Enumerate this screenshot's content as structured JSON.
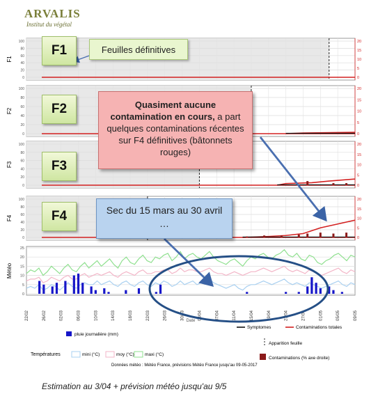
{
  "logo": {
    "name": "ARVALIS",
    "subtitle": "Institut du végétal"
  },
  "panels": [
    {
      "id": "F1",
      "ylabel": "F1",
      "right_ticks": [
        "20",
        "15",
        "10",
        "5",
        "0"
      ],
      "left_ticks": [
        "100",
        "80",
        "60",
        "40",
        "20",
        "0"
      ]
    },
    {
      "id": "F2",
      "ylabel": "F2",
      "right_ticks": [
        "20",
        "15",
        "10",
        "5",
        "0"
      ],
      "left_ticks": [
        "100",
        "80",
        "60",
        "40",
        "20",
        "0"
      ]
    },
    {
      "id": "F3",
      "ylabel": "F3",
      "right_ticks": [
        "20",
        "15",
        "10",
        "5",
        "0"
      ],
      "left_ticks": [
        "100",
        "80",
        "60",
        "40",
        "20",
        "0"
      ]
    },
    {
      "id": "F4",
      "ylabel": "F4",
      "right_ticks": [
        "20",
        "15",
        "10",
        "5",
        "0"
      ],
      "left_ticks": [
        "100",
        "80",
        "60",
        "40",
        "20",
        "0"
      ]
    }
  ],
  "meteo": {
    "ylabel": "Météo",
    "ticks": [
      "25",
      "20",
      "15",
      "10",
      "5",
      "0"
    ]
  },
  "chart_data": {
    "type": "line",
    "x": [
      "22/02",
      "26/02",
      "02/03",
      "06/03",
      "10/03",
      "14/03",
      "18/03",
      "22/03",
      "26/03",
      "30/03",
      "03/04",
      "07/04",
      "11/04",
      "15/04",
      "19/04",
      "23/04",
      "27/04",
      "01/05",
      "05/05",
      "09/05"
    ],
    "xlabel": "Date",
    "leaf_panels": [
      {
        "leaf": "F1",
        "emergence_x": "03/05",
        "contaminations_total": [],
        "bars": []
      },
      {
        "leaf": "F2",
        "emergence_x": "15/04",
        "contaminations_total": [
          {
            "x": "23/04",
            "y": 0
          },
          {
            "x": "27/04",
            "y": 0.3
          },
          {
            "x": "09/05",
            "y": 0.6
          }
        ],
        "bars": []
      },
      {
        "leaf": "F3",
        "emergence_x": "03/04",
        "contaminations_total": [
          {
            "x": "21/04",
            "y": 0
          },
          {
            "x": "23/04",
            "y": 0.8
          },
          {
            "x": "29/04",
            "y": 1.2
          },
          {
            "x": "03/05",
            "y": 2
          },
          {
            "x": "09/05",
            "y": 3
          }
        ],
        "bars": [
          {
            "x": "28/04",
            "y": 2
          },
          {
            "x": "04/05",
            "y": 1
          },
          {
            "x": "07/05",
            "y": 1
          }
        ]
      },
      {
        "leaf": "F4",
        "emergence_x": "22/03",
        "contaminations_total": [
          {
            "x": "13/04",
            "y": 0
          },
          {
            "x": "19/04",
            "y": 0.5
          },
          {
            "x": "23/04",
            "y": 1
          },
          {
            "x": "27/04",
            "y": 2
          },
          {
            "x": "01/05",
            "y": 5
          },
          {
            "x": "05/05",
            "y": 7
          },
          {
            "x": "09/05",
            "y": 9
          }
        ],
        "bars": [
          {
            "x": "14/04",
            "y": 0.5
          },
          {
            "x": "18/04",
            "y": 1
          },
          {
            "x": "22/04",
            "y": 1
          },
          {
            "x": "26/04",
            "y": 1.5
          },
          {
            "x": "28/04",
            "y": 2
          },
          {
            "x": "01/05",
            "y": 2.5
          },
          {
            "x": "04/05",
            "y": 2
          },
          {
            "x": "07/05",
            "y": 2.5
          }
        ]
      }
    ],
    "rain_mm": [
      {
        "x": "25/02",
        "y": 7
      },
      {
        "x": "26/02",
        "y": 5
      },
      {
        "x": "28/02",
        "y": 4
      },
      {
        "x": "01/03",
        "y": 6
      },
      {
        "x": "03/03",
        "y": 7
      },
      {
        "x": "05/03",
        "y": 10
      },
      {
        "x": "06/03",
        "y": 11
      },
      {
        "x": "07/03",
        "y": 6
      },
      {
        "x": "09/03",
        "y": 4
      },
      {
        "x": "10/03",
        "y": 2
      },
      {
        "x": "12/03",
        "y": 3
      },
      {
        "x": "13/03",
        "y": 1
      },
      {
        "x": "17/03",
        "y": 2
      },
      {
        "x": "20/03",
        "y": 3
      },
      {
        "x": "24/03",
        "y": 1
      },
      {
        "x": "25/03",
        "y": 5
      },
      {
        "x": "14/04",
        "y": 1
      },
      {
        "x": "23/04",
        "y": 1
      },
      {
        "x": "26/04",
        "y": 1
      },
      {
        "x": "28/04",
        "y": 4
      },
      {
        "x": "29/04",
        "y": 9
      },
      {
        "x": "30/04",
        "y": 6
      },
      {
        "x": "01/05",
        "y": 3
      },
      {
        "x": "03/05",
        "y": 4
      },
      {
        "x": "04/05",
        "y": 2
      },
      {
        "x": "06/05",
        "y": 1
      }
    ],
    "temp_max": [
      11,
      13,
      12,
      14,
      10,
      12,
      15,
      13,
      11,
      14,
      16,
      13,
      12,
      15,
      17,
      14,
      16,
      18,
      15,
      17,
      19,
      16,
      14,
      18,
      20,
      17,
      16,
      19,
      21,
      18,
      17,
      20,
      19,
      21,
      22,
      18,
      20,
      23,
      19,
      21,
      22,
      20,
      19,
      21,
      23,
      20,
      18,
      17,
      16,
      18,
      19,
      17,
      15,
      18,
      20,
      19,
      21,
      22,
      20,
      19,
      21,
      22,
      24,
      21,
      20,
      22,
      19,
      18,
      21,
      20,
      17,
      16,
      18,
      19,
      21,
      22,
      20,
      18,
      21,
      20
    ],
    "temp_mean": [
      7,
      8,
      8,
      9,
      6,
      7,
      9,
      8,
      7,
      9,
      10,
      8,
      8,
      10,
      11,
      9,
      10,
      11,
      10,
      11,
      12,
      10,
      9,
      11,
      12,
      11,
      10,
      12,
      13,
      11,
      11,
      12,
      12,
      13,
      13,
      11,
      12,
      14,
      12,
      13,
      13,
      12,
      12,
      13,
      14,
      12,
      11,
      11,
      10,
      11,
      12,
      11,
      10,
      11,
      12,
      12,
      13,
      14,
      13,
      12,
      13,
      14,
      15,
      13,
      12,
      13,
      12,
      11,
      13,
      12,
      11,
      10,
      11,
      12,
      13,
      14,
      12,
      11,
      13,
      12
    ],
    "temp_min": [
      3,
      4,
      3,
      5,
      2,
      3,
      5,
      4,
      2,
      4,
      6,
      4,
      3,
      5,
      6,
      5,
      5,
      7,
      5,
      6,
      7,
      5,
      4,
      6,
      7,
      5,
      4,
      6,
      7,
      5,
      4,
      6,
      5,
      7,
      6,
      4,
      5,
      7,
      5,
      6,
      7,
      5,
      6,
      7,
      8,
      6,
      5,
      4,
      3,
      4,
      5,
      3,
      2,
      4,
      5,
      5,
      6,
      7,
      6,
      5,
      6,
      7,
      8,
      6,
      5,
      6,
      5,
      4,
      6,
      5,
      4,
      3,
      4,
      5,
      6,
      7,
      5,
      4,
      6,
      5
    ],
    "legend": {
      "rain": "pluie journalière (mm)",
      "symptoms": "Symptomes",
      "contam_total": "Contaminations totales",
      "leaf_emergence": "Apparition feuille",
      "contam_axis": "Contaminations (% axe droite)",
      "temps_title": "Températures",
      "tmin": "mini (°C)",
      "tmean": "moy (°C)",
      "tmax": "maxi (°C)"
    },
    "source_note": "Données météo : Météo France, prévisions Météo France jusqu'au 09-05-2017"
  },
  "callouts": {
    "f1_note": "Feuilles définitives",
    "contamination_bold": "Quasiment aucune contamination en cours,",
    "contamination_rest": " a part quelques contaminations récentes sur F4 définitives (bâtonnets rouges)",
    "dry_period": "Sec du 15 mars au 30 avril …"
  },
  "caption": "Estimation au 3/04 + prévision météo jusqu'au 9/5",
  "colors": {
    "contam": "#d32020",
    "symptom": "#111111",
    "bar": "#8b1a1a",
    "rain": "#1616c8",
    "tmax": "#8fe08f",
    "tmean": "#f3b6c8",
    "tmin": "#a9d0f0",
    "callout_red": "#f6b3b3",
    "callout_blue": "#b9d3ef",
    "ellipse": "#254f86"
  }
}
